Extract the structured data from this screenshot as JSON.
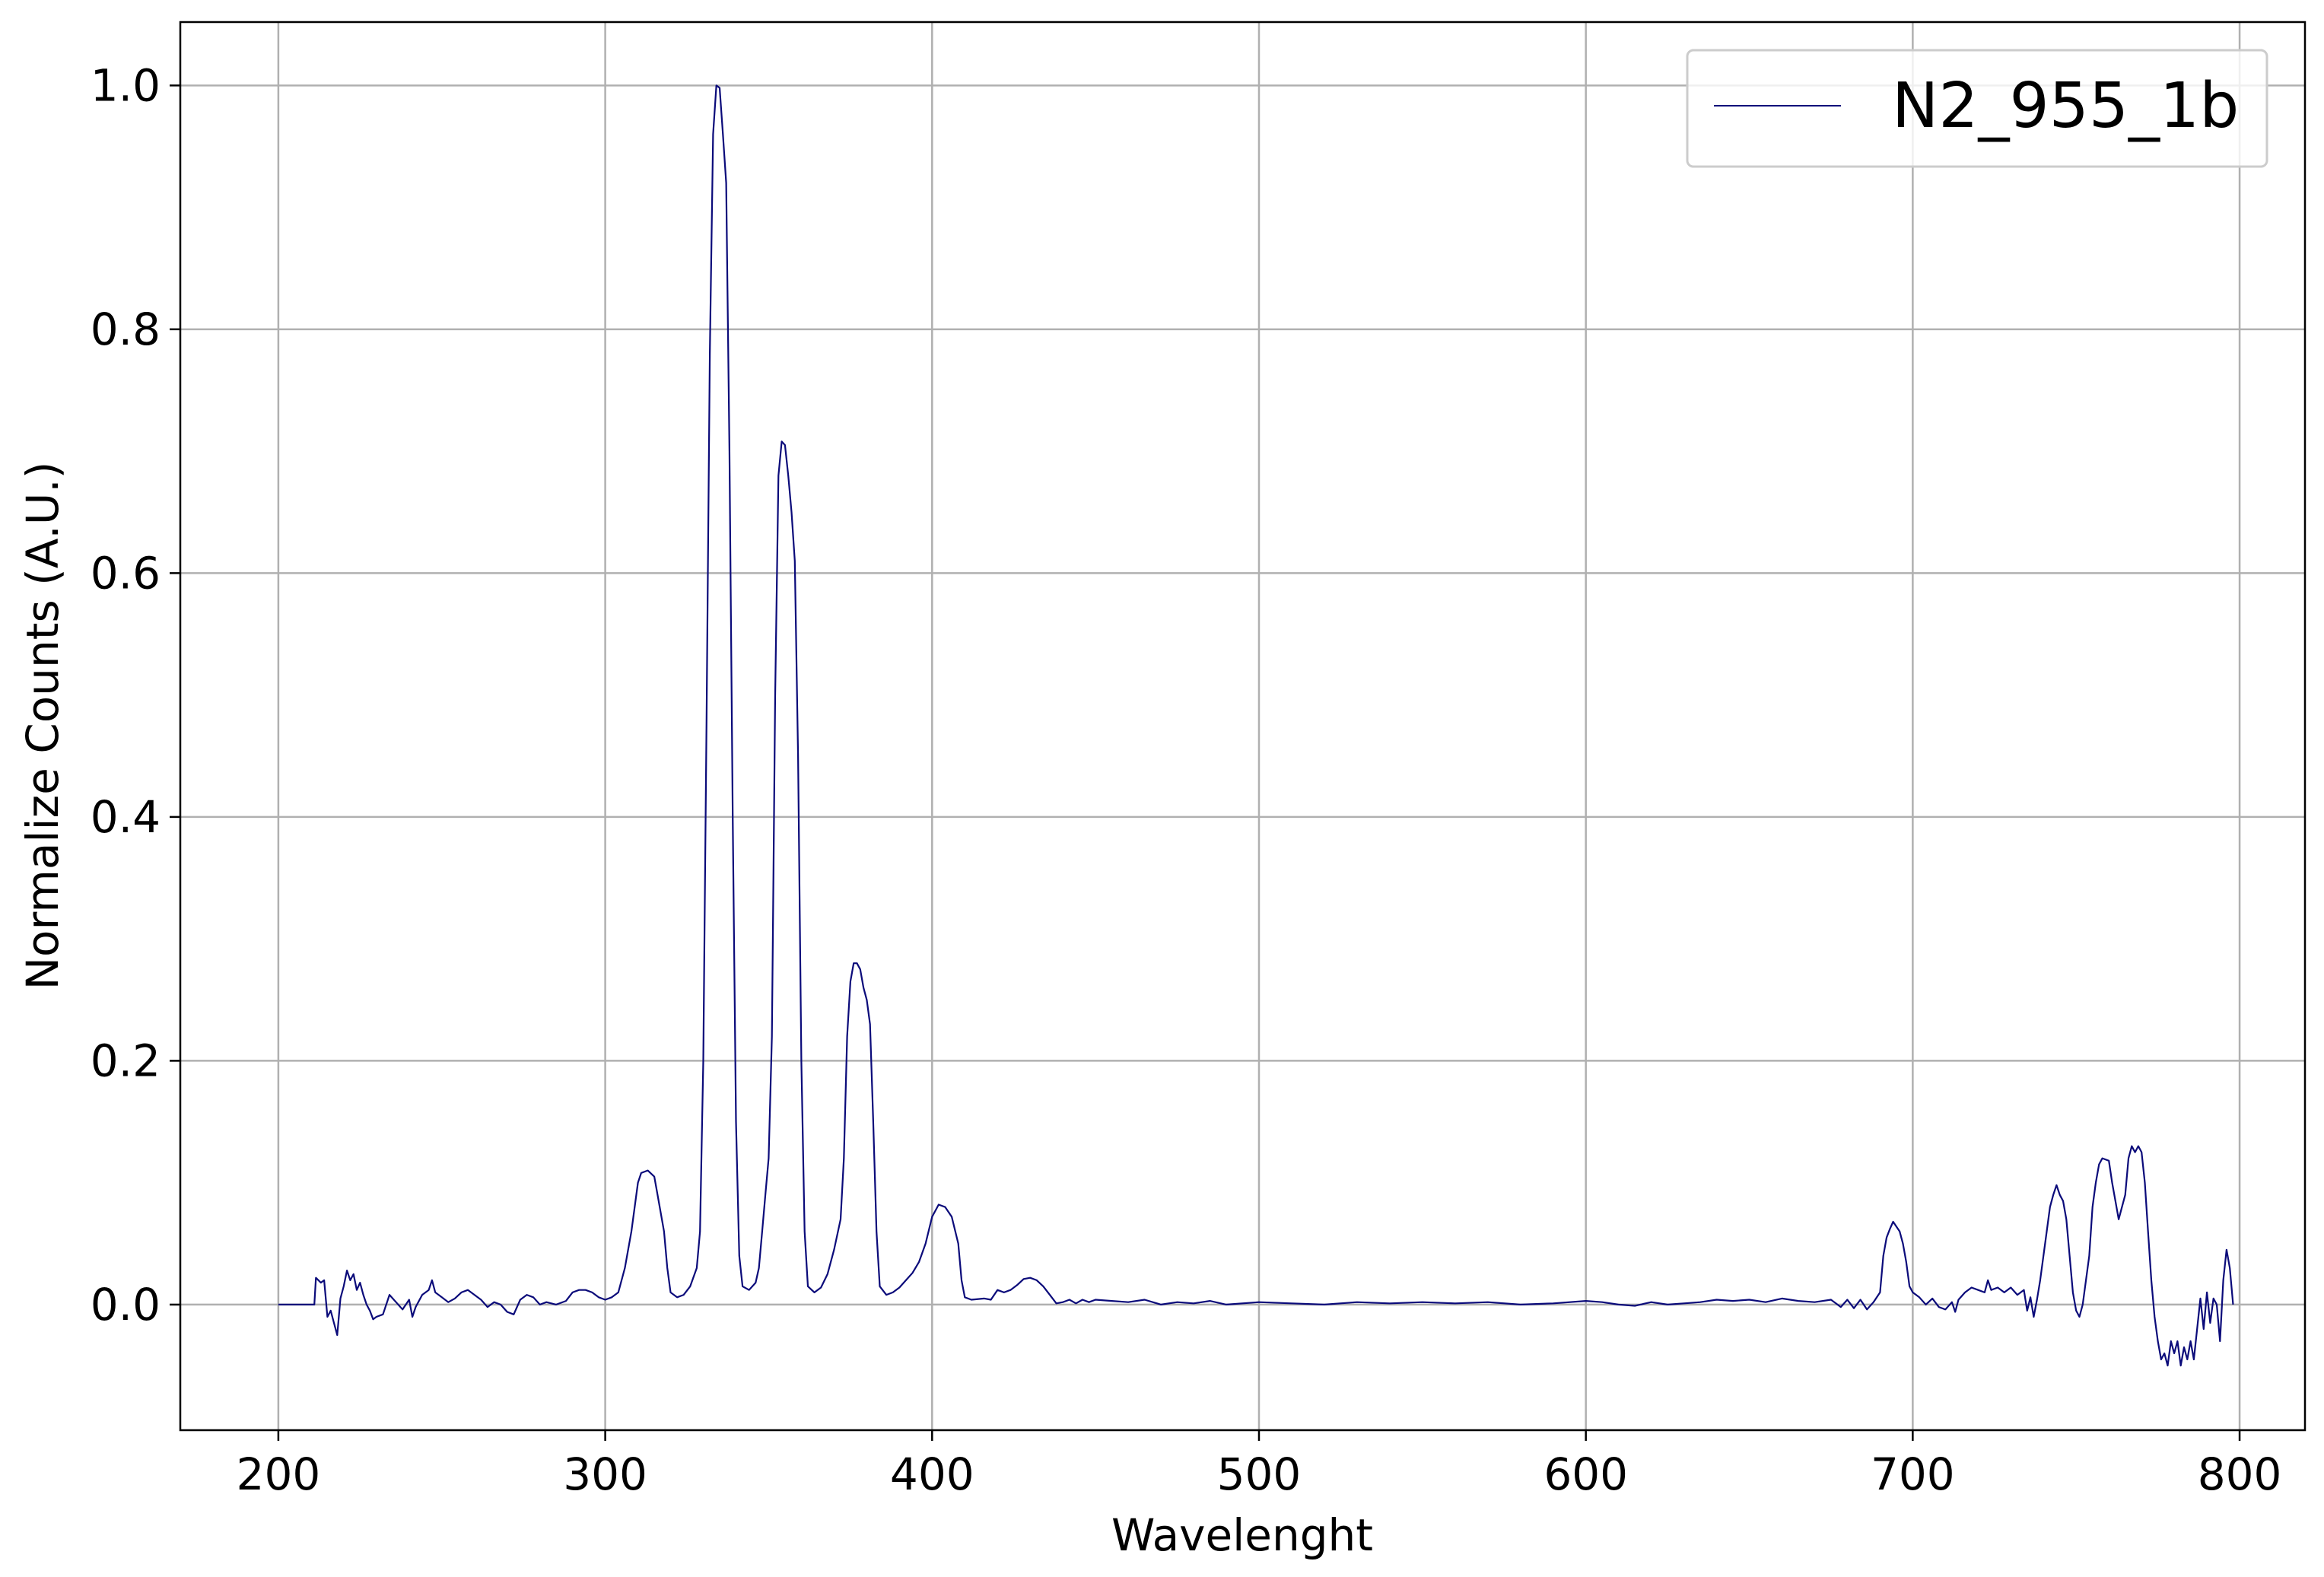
{
  "chart_data": {
    "type": "line",
    "title": "",
    "xlabel": "Wavelenght",
    "ylabel": "Normalize Counts (A.U.)",
    "xlim": [
      170,
      820
    ],
    "ylim": [
      -0.103,
      1.052
    ],
    "xticks": [
      200,
      300,
      400,
      500,
      600,
      700,
      800
    ],
    "yticks": [
      0.0,
      0.2,
      0.4,
      0.6,
      0.8,
      1.0
    ],
    "xtick_labels": [
      "200",
      "300",
      "400",
      "500",
      "600",
      "700",
      "800"
    ],
    "ytick_labels": [
      "0.0",
      "0.2",
      "0.4",
      "0.6",
      "0.8",
      "1.0"
    ],
    "grid": true,
    "legend_position": "top-right",
    "colors": {
      "series": "#0b0b7a",
      "grid": "#b0b0b0",
      "axes": "#000000"
    },
    "series": [
      {
        "name": "N2_955_1b",
        "points": [
          [
            200,
            0.0
          ],
          [
            211,
            0.0
          ],
          [
            211.5,
            0.022
          ],
          [
            213,
            0.018
          ],
          [
            214,
            0.02
          ],
          [
            215,
            -0.01
          ],
          [
            216,
            -0.005
          ],
          [
            217,
            -0.015
          ],
          [
            218,
            -0.025
          ],
          [
            219,
            0.005
          ],
          [
            220,
            0.015
          ],
          [
            221,
            0.028
          ],
          [
            222,
            0.02
          ],
          [
            223,
            0.025
          ],
          [
            224,
            0.012
          ],
          [
            225,
            0.018
          ],
          [
            226,
            0.008
          ],
          [
            227,
            0.0
          ],
          [
            228,
            -0.005
          ],
          [
            229,
            -0.012
          ],
          [
            230,
            -0.01
          ],
          [
            232,
            -0.008
          ],
          [
            234,
            0.008
          ],
          [
            236,
            0.002
          ],
          [
            238,
            -0.004
          ],
          [
            240,
            0.004
          ],
          [
            241,
            -0.01
          ],
          [
            242,
            -0.002
          ],
          [
            244,
            0.008
          ],
          [
            246,
            0.012
          ],
          [
            247,
            0.02
          ],
          [
            248,
            0.01
          ],
          [
            250,
            0.006
          ],
          [
            252,
            0.002
          ],
          [
            254,
            0.005
          ],
          [
            256,
            0.01
          ],
          [
            258,
            0.012
          ],
          [
            260,
            0.008
          ],
          [
            262,
            0.004
          ],
          [
            264,
            -0.002
          ],
          [
            266,
            0.002
          ],
          [
            268,
            0.0
          ],
          [
            270,
            -0.006
          ],
          [
            272,
            -0.008
          ],
          [
            274,
            0.004
          ],
          [
            276,
            0.008
          ],
          [
            278,
            0.006
          ],
          [
            280,
            0.0
          ],
          [
            282,
            0.002
          ],
          [
            285,
            0.0
          ],
          [
            288,
            0.003
          ],
          [
            290,
            0.01
          ],
          [
            292,
            0.012
          ],
          [
            294,
            0.012
          ],
          [
            296,
            0.01
          ],
          [
            298,
            0.006
          ],
          [
            300,
            0.004
          ],
          [
            302,
            0.006
          ],
          [
            304,
            0.01
          ],
          [
            306,
            0.03
          ],
          [
            308,
            0.06
          ],
          [
            310,
            0.1
          ],
          [
            311,
            0.108
          ],
          [
            313,
            0.11
          ],
          [
            315,
            0.105
          ],
          [
            316,
            0.09
          ],
          [
            318,
            0.06
          ],
          [
            319,
            0.03
          ],
          [
            320,
            0.01
          ],
          [
            322,
            0.006
          ],
          [
            324,
            0.008
          ],
          [
            326,
            0.015
          ],
          [
            328,
            0.03
          ],
          [
            329,
            0.06
          ],
          [
            330,
            0.2
          ],
          [
            331,
            0.48
          ],
          [
            332,
            0.78
          ],
          [
            333,
            0.96
          ],
          [
            334,
            1.0
          ],
          [
            335,
            0.998
          ],
          [
            336,
            0.96
          ],
          [
            337,
            0.92
          ],
          [
            338,
            0.7
          ],
          [
            339,
            0.4
          ],
          [
            340,
            0.15
          ],
          [
            341,
            0.04
          ],
          [
            342,
            0.015
          ],
          [
            344,
            0.012
          ],
          [
            346,
            0.018
          ],
          [
            347,
            0.03
          ],
          [
            348,
            0.06
          ],
          [
            349,
            0.09
          ],
          [
            350,
            0.12
          ],
          [
            351,
            0.22
          ],
          [
            352,
            0.5
          ],
          [
            353,
            0.68
          ],
          [
            354,
            0.708
          ],
          [
            355,
            0.705
          ],
          [
            356,
            0.68
          ],
          [
            357,
            0.65
          ],
          [
            358,
            0.61
          ],
          [
            359,
            0.45
          ],
          [
            360,
            0.2
          ],
          [
            361,
            0.06
          ],
          [
            362,
            0.015
          ],
          [
            364,
            0.01
          ],
          [
            366,
            0.014
          ],
          [
            368,
            0.025
          ],
          [
            370,
            0.045
          ],
          [
            372,
            0.07
          ],
          [
            373,
            0.12
          ],
          [
            374,
            0.22
          ],
          [
            375,
            0.265
          ],
          [
            376,
            0.28
          ],
          [
            377,
            0.28
          ],
          [
            378,
            0.275
          ],
          [
            379,
            0.26
          ],
          [
            380,
            0.25
          ],
          [
            381,
            0.23
          ],
          [
            382,
            0.15
          ],
          [
            383,
            0.06
          ],
          [
            384,
            0.015
          ],
          [
            386,
            0.008
          ],
          [
            388,
            0.01
          ],
          [
            390,
            0.014
          ],
          [
            392,
            0.02
          ],
          [
            394,
            0.026
          ],
          [
            396,
            0.035
          ],
          [
            398,
            0.05
          ],
          [
            400,
            0.072
          ],
          [
            402,
            0.082
          ],
          [
            404,
            0.08
          ],
          [
            406,
            0.072
          ],
          [
            408,
            0.05
          ],
          [
            409,
            0.02
          ],
          [
            410,
            0.006
          ],
          [
            412,
            0.004
          ],
          [
            416,
            0.005
          ],
          [
            418,
            0.004
          ],
          [
            420,
            0.012
          ],
          [
            422,
            0.01
          ],
          [
            424,
            0.012
          ],
          [
            426,
            0.016
          ],
          [
            428,
            0.021
          ],
          [
            430,
            0.022
          ],
          [
            432,
            0.02
          ],
          [
            434,
            0.015
          ],
          [
            436,
            0.008
          ],
          [
            438,
            0.001
          ],
          [
            440,
            0.002
          ],
          [
            442,
            0.004
          ],
          [
            444,
            0.001
          ],
          [
            446,
            0.004
          ],
          [
            448,
            0.002
          ],
          [
            450,
            0.004
          ],
          [
            455,
            0.003
          ],
          [
            460,
            0.002
          ],
          [
            465,
            0.004
          ],
          [
            470,
            0.0
          ],
          [
            475,
            0.002
          ],
          [
            480,
            0.001
          ],
          [
            485,
            0.003
          ],
          [
            490,
            0.0
          ],
          [
            500,
            0.002
          ],
          [
            510,
            0.001
          ],
          [
            520,
            0.0
          ],
          [
            530,
            0.002
          ],
          [
            540,
            0.001
          ],
          [
            550,
            0.002
          ],
          [
            560,
            0.001
          ],
          [
            570,
            0.002
          ],
          [
            580,
            0.0
          ],
          [
            590,
            0.001
          ],
          [
            600,
            0.003
          ],
          [
            605,
            0.002
          ],
          [
            610,
            0.0
          ],
          [
            615,
            -0.001
          ],
          [
            620,
            0.002
          ],
          [
            625,
            0.0
          ],
          [
            630,
            0.001
          ],
          [
            635,
            0.002
          ],
          [
            640,
            0.004
          ],
          [
            645,
            0.003
          ],
          [
            650,
            0.004
          ],
          [
            655,
            0.002
          ],
          [
            660,
            0.005
          ],
          [
            665,
            0.003
          ],
          [
            670,
            0.002
          ],
          [
            675,
            0.004
          ],
          [
            678,
            -0.002
          ],
          [
            680,
            0.004
          ],
          [
            682,
            -0.003
          ],
          [
            684,
            0.004
          ],
          [
            686,
            -0.004
          ],
          [
            688,
            0.002
          ],
          [
            690,
            0.01
          ],
          [
            691,
            0.04
          ],
          [
            692,
            0.055
          ],
          [
            693,
            0.062
          ],
          [
            694,
            0.068
          ],
          [
            696,
            0.06
          ],
          [
            697,
            0.05
          ],
          [
            698,
            0.035
          ],
          [
            699,
            0.015
          ],
          [
            700,
            0.01
          ],
          [
            702,
            0.006
          ],
          [
            704,
            0.0
          ],
          [
            706,
            0.005
          ],
          [
            708,
            -0.002
          ],
          [
            710,
            -0.004
          ],
          [
            712,
            0.002
          ],
          [
            713,
            -0.006
          ],
          [
            714,
            0.004
          ],
          [
            716,
            0.01
          ],
          [
            718,
            0.014
          ],
          [
            720,
            0.012
          ],
          [
            722,
            0.01
          ],
          [
            723,
            0.02
          ],
          [
            724,
            0.012
          ],
          [
            726,
            0.014
          ],
          [
            728,
            0.01
          ],
          [
            730,
            0.014
          ],
          [
            732,
            0.008
          ],
          [
            734,
            0.012
          ],
          [
            735,
            -0.005
          ],
          [
            736,
            0.006
          ],
          [
            737,
            -0.01
          ],
          [
            738,
            0.004
          ],
          [
            739,
            0.02
          ],
          [
            740,
            0.04
          ],
          [
            741,
            0.06
          ],
          [
            742,
            0.08
          ],
          [
            743,
            0.09
          ],
          [
            744,
            0.098
          ],
          [
            745,
            0.09
          ],
          [
            746,
            0.085
          ],
          [
            747,
            0.07
          ],
          [
            748,
            0.04
          ],
          [
            749,
            0.01
          ],
          [
            750,
            -0.005
          ],
          [
            751,
            -0.01
          ],
          [
            752,
            0.0
          ],
          [
            754,
            0.04
          ],
          [
            755,
            0.08
          ],
          [
            756,
            0.1
          ],
          [
            757,
            0.115
          ],
          [
            758,
            0.12
          ],
          [
            760,
            0.118
          ],
          [
            761,
            0.1
          ],
          [
            762,
            0.085
          ],
          [
            763,
            0.07
          ],
          [
            764,
            0.08
          ],
          [
            765,
            0.09
          ],
          [
            766,
            0.12
          ],
          [
            767,
            0.13
          ],
          [
            768,
            0.125
          ],
          [
            769,
            0.13
          ],
          [
            770,
            0.125
          ],
          [
            771,
            0.1
          ],
          [
            772,
            0.06
          ],
          [
            773,
            0.02
          ],
          [
            774,
            -0.01
          ],
          [
            775,
            -0.03
          ],
          [
            776,
            -0.045
          ],
          [
            777,
            -0.04
          ],
          [
            778,
            -0.05
          ],
          [
            779,
            -0.03
          ],
          [
            780,
            -0.04
          ],
          [
            781,
            -0.03
          ],
          [
            782,
            -0.05
          ],
          [
            783,
            -0.035
          ],
          [
            784,
            -0.045
          ],
          [
            785,
            -0.03
          ],
          [
            786,
            -0.045
          ],
          [
            787,
            -0.02
          ],
          [
            788,
            0.005
          ],
          [
            789,
            -0.02
          ],
          [
            790,
            0.01
          ],
          [
            791,
            -0.015
          ],
          [
            792,
            0.005
          ],
          [
            793,
            0.0
          ],
          [
            794,
            -0.03
          ],
          [
            795,
            0.02
          ],
          [
            796,
            0.045
          ],
          [
            797,
            0.03
          ],
          [
            798,
            0.0
          ]
        ]
      }
    ]
  }
}
